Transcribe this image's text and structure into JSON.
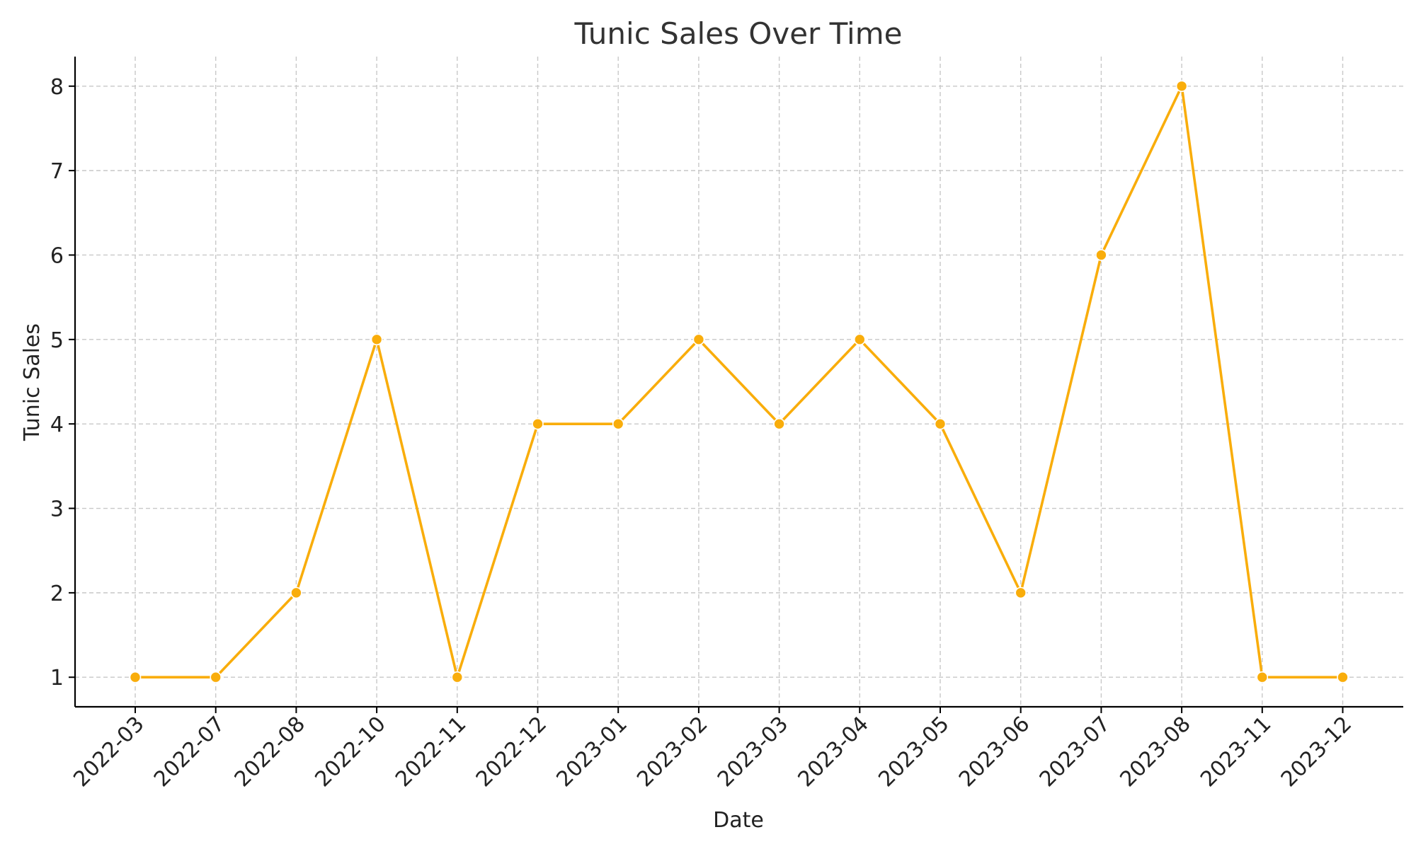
{
  "chart_data": {
    "type": "line",
    "title": "Tunic Sales Over Time",
    "xlabel": "Date",
    "ylabel": "Tunic Sales",
    "categories": [
      "2022-03",
      "2022-07",
      "2022-08",
      "2022-10",
      "2022-11",
      "2022-12",
      "2023-01",
      "2023-02",
      "2023-03",
      "2023-04",
      "2023-05",
      "2023-06",
      "2023-07",
      "2023-08",
      "2023-11",
      "2023-12"
    ],
    "series": [
      {
        "values": [
          1,
          1,
          2,
          5,
          1,
          4,
          4,
          5,
          4,
          5,
          4,
          2,
          6,
          8,
          1,
          1
        ],
        "color": "#F9AD0B"
      }
    ],
    "yticks": [
      1,
      2,
      3,
      4,
      5,
      6,
      7,
      8
    ],
    "ylim": [
      0.65,
      8.35
    ],
    "grid": true,
    "legend": "none"
  }
}
